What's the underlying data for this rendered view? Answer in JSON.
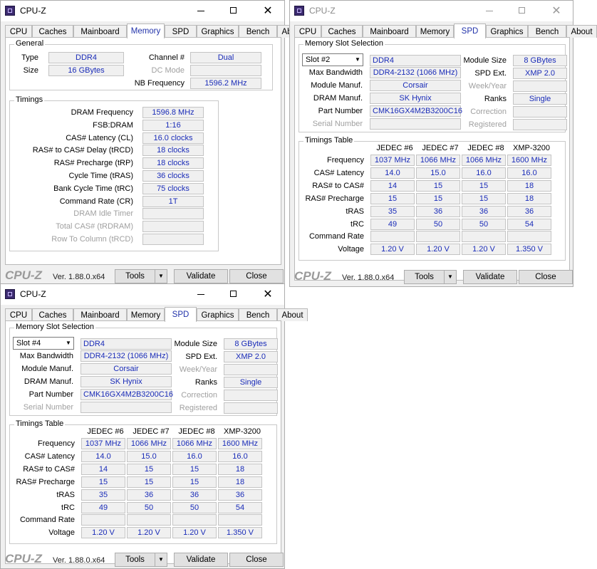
{
  "window_title": "CPU-Z",
  "tabs": [
    "CPU",
    "Caches",
    "Mainboard",
    "Memory",
    "SPD",
    "Graphics",
    "Bench",
    "About"
  ],
  "footer": {
    "brand": "CPU-Z",
    "version": "Ver. 1.88.0.x64",
    "tools": "Tools",
    "validate": "Validate",
    "close": "Close"
  },
  "memory": {
    "general_title": "General",
    "type_label": "Type",
    "type": "DDR4",
    "size_label": "Size",
    "size": "16 GBytes",
    "channel_label": "Channel #",
    "channel": "Dual",
    "dc_mode_label": "DC Mode",
    "dc_mode": "",
    "nb_freq_label": "NB Frequency",
    "nb_freq": "1596.2 MHz",
    "timings_title": "Timings",
    "timings": [
      {
        "label": "DRAM Frequency",
        "value": "1596.8 MHz",
        "disabled": false
      },
      {
        "label": "FSB:DRAM",
        "value": "1:16",
        "disabled": false
      },
      {
        "label": "CAS# Latency (CL)",
        "value": "16.0 clocks",
        "disabled": false
      },
      {
        "label": "RAS# to CAS# Delay (tRCD)",
        "value": "18 clocks",
        "disabled": false
      },
      {
        "label": "RAS# Precharge (tRP)",
        "value": "18 clocks",
        "disabled": false
      },
      {
        "label": "Cycle Time (tRAS)",
        "value": "36 clocks",
        "disabled": false
      },
      {
        "label": "Bank Cycle Time (tRC)",
        "value": "75 clocks",
        "disabled": false
      },
      {
        "label": "Command Rate (CR)",
        "value": "1T",
        "disabled": false
      },
      {
        "label": "DRAM Idle Timer",
        "value": "",
        "disabled": true
      },
      {
        "label": "Total CAS# (tRDRAM)",
        "value": "",
        "disabled": true
      },
      {
        "label": "Row To Column (tRCD)",
        "value": "",
        "disabled": true
      }
    ]
  },
  "spd_labels": {
    "slot_group": "Memory Slot Selection",
    "max_bandwidth": "Max Bandwidth",
    "module_manuf": "Module Manuf.",
    "dram_manuf": "DRAM Manuf.",
    "part_number": "Part Number",
    "serial_number": "Serial Number",
    "module_size": "Module Size",
    "spd_ext": "SPD Ext.",
    "week_year": "Week/Year",
    "ranks": "Ranks",
    "correction": "Correction",
    "registered": "Registered",
    "timings_table": "Timings Table",
    "columns": [
      "JEDEC #6",
      "JEDEC #7",
      "JEDEC #8",
      "XMP-3200"
    ],
    "rows": [
      "Frequency",
      "CAS# Latency",
      "RAS# to CAS#",
      "RAS# Precharge",
      "tRAS",
      "tRC",
      "Command Rate",
      "Voltage"
    ]
  },
  "spd_slot2": {
    "slot": "Slot #2",
    "type": "DDR4",
    "max_bandwidth": "DDR4-2132 (1066 MHz)",
    "module_manuf": "Corsair",
    "dram_manuf": "SK Hynix",
    "part_number": "CMK16GX4M2B3200C16",
    "serial_number": "",
    "module_size": "8 GBytes",
    "spd_ext": "XMP 2.0",
    "week_year": "",
    "ranks": "Single",
    "correction": "",
    "registered": "",
    "table": [
      [
        "1037 MHz",
        "1066 MHz",
        "1066 MHz",
        "1600 MHz"
      ],
      [
        "14.0",
        "15.0",
        "16.0",
        "16.0"
      ],
      [
        "14",
        "15",
        "15",
        "18"
      ],
      [
        "15",
        "15",
        "15",
        "18"
      ],
      [
        "35",
        "36",
        "36",
        "36"
      ],
      [
        "49",
        "50",
        "50",
        "54"
      ],
      [
        "",
        "",
        "",
        ""
      ],
      [
        "1.20 V",
        "1.20 V",
        "1.20 V",
        "1.350 V"
      ]
    ]
  },
  "spd_slot4": {
    "slot": "Slot #4",
    "type": "DDR4",
    "max_bandwidth": "DDR4-2132 (1066 MHz)",
    "module_manuf": "Corsair",
    "dram_manuf": "SK Hynix",
    "part_number": "CMK16GX4M2B3200C16",
    "serial_number": "",
    "module_size": "8 GBytes",
    "spd_ext": "XMP 2.0",
    "week_year": "",
    "ranks": "Single",
    "correction": "",
    "registered": "",
    "table": [
      [
        "1037 MHz",
        "1066 MHz",
        "1066 MHz",
        "1600 MHz"
      ],
      [
        "14.0",
        "15.0",
        "16.0",
        "16.0"
      ],
      [
        "14",
        "15",
        "15",
        "18"
      ],
      [
        "15",
        "15",
        "15",
        "18"
      ],
      [
        "35",
        "36",
        "36",
        "36"
      ],
      [
        "49",
        "50",
        "50",
        "54"
      ],
      [
        "",
        "",
        "",
        ""
      ],
      [
        "1.20 V",
        "1.20 V",
        "1.20 V",
        "1.350 V"
      ]
    ]
  }
}
